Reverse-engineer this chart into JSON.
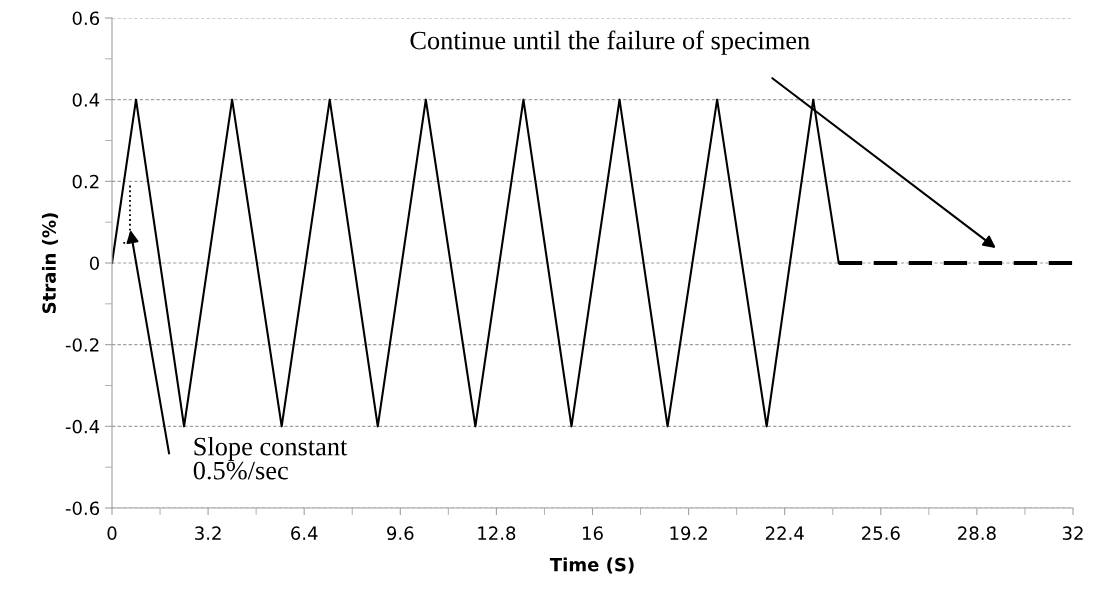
{
  "chart_data": {
    "type": "line",
    "xlabel": "Time (S)",
    "ylabel": "Strain (%)",
    "xlim": [
      0,
      32
    ],
    "xticks": [
      0,
      3.2,
      6.4,
      9.6,
      12.8,
      16,
      19.2,
      22.4,
      25.6,
      28.8,
      32
    ],
    "ylim": [
      -0.6,
      0.6
    ],
    "yticks": [
      -0.6,
      -0.4,
      -0.2,
      0,
      0.2,
      0.4,
      0.6
    ],
    "grid": "y",
    "marker": "none",
    "series": [
      {
        "color": "#000000",
        "line_style": "solid",
        "x": [
          0,
          0.8,
          2.4,
          4.0,
          5.65,
          7.25,
          8.85,
          10.45,
          12.1,
          13.7,
          15.3,
          16.9,
          18.5,
          20.15,
          21.8,
          23.35,
          24.2
        ],
        "values": [
          0,
          0.4,
          -0.4,
          0.4,
          -0.4,
          0.4,
          -0.4,
          0.4,
          -0.4,
          0.4,
          -0.4,
          0.4,
          -0.4,
          0.4,
          -0.4,
          0.4,
          0
        ]
      },
      {
        "color": "#000000",
        "line_style": "dashed",
        "x": [
          24.2,
          32
        ],
        "values": [
          0,
          0
        ]
      }
    ],
    "annotations": [
      "Slope constant\n0.5%/sec",
      "Continue until the failure of specimen"
    ]
  }
}
